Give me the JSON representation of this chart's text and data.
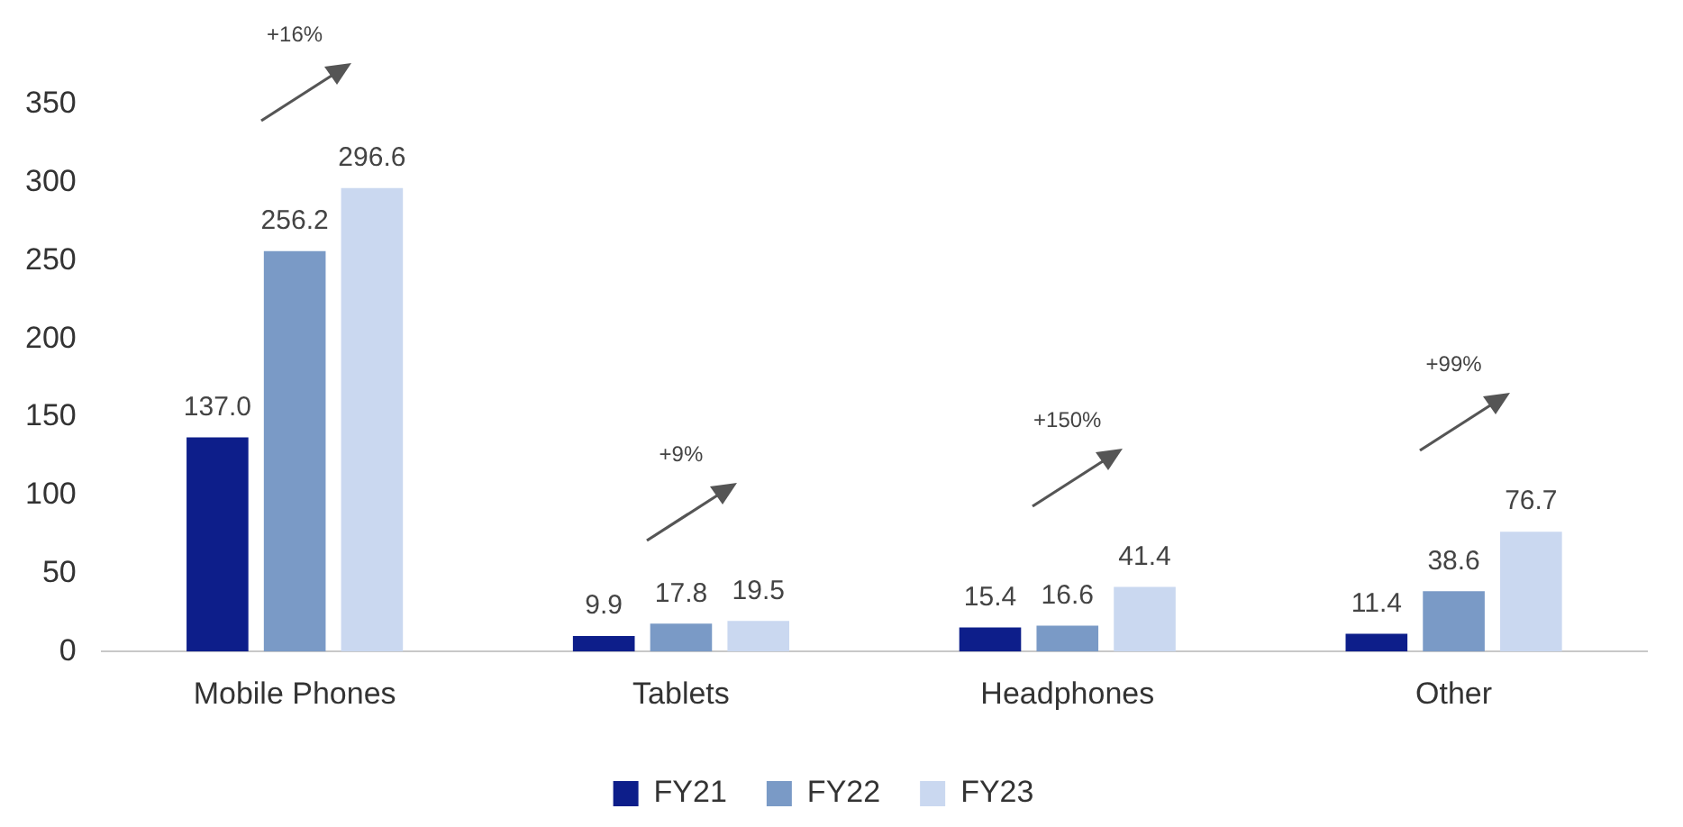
{
  "chart_data": {
    "type": "bar",
    "categories": [
      "Mobile Phones",
      "Tablets",
      "Headphones",
      "Other"
    ],
    "series": [
      {
        "name": "FY21",
        "color": "#0d1e8a",
        "values": [
          137.0,
          9.9,
          15.4,
          11.4
        ],
        "value_labels": [
          "137.0",
          "9.9",
          "15.4",
          "11.4"
        ]
      },
      {
        "name": "FY22",
        "color": "#7a9ac6",
        "values": [
          256.2,
          17.8,
          16.6,
          38.6
        ],
        "value_labels": [
          "256.2",
          "17.8",
          "16.6",
          "38.6"
        ]
      },
      {
        "name": "FY23",
        "color": "#cad8f0",
        "values": [
          296.6,
          19.5,
          41.4,
          76.7
        ],
        "value_labels": [
          "296.6",
          "19.5",
          "41.4",
          "76.7"
        ]
      }
    ],
    "ylim": [
      0,
      350
    ],
    "yticks": [
      0,
      50,
      100,
      150,
      200,
      250,
      300,
      350
    ],
    "grid": false,
    "legend": "bottom",
    "annotations": [
      "+16%",
      "+9%",
      "+150%",
      "+99%"
    ]
  }
}
